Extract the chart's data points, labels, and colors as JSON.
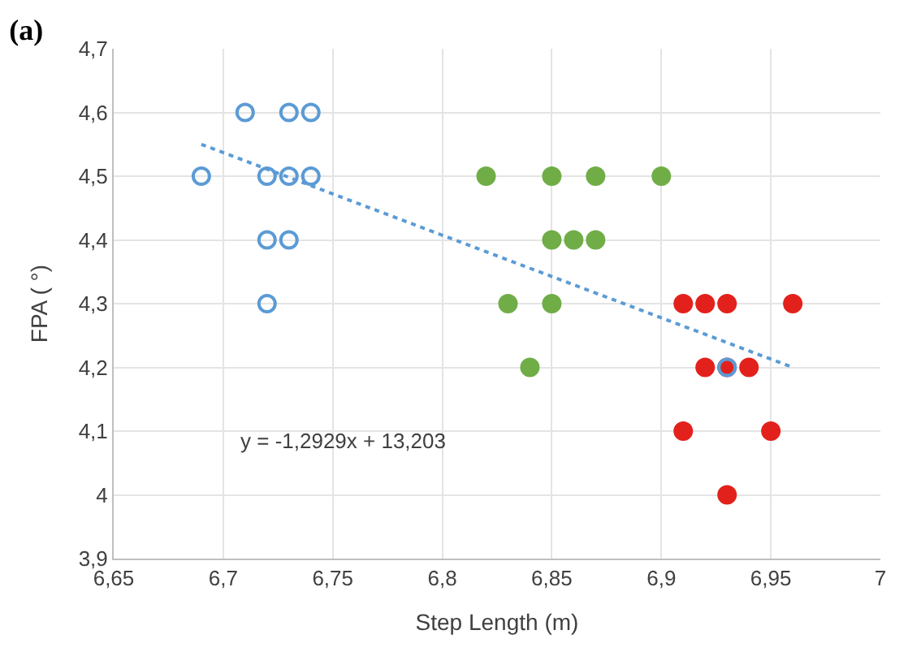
{
  "chart_data": {
    "type": "scatter",
    "title": "(a)",
    "xlabel": "Step Length (m)",
    "ylabel": "FPA ( °)",
    "annotations": [
      "y = -1,2929x + 13,203"
    ],
    "xlim": [
      6.65,
      7
    ],
    "ylim": [
      3.9,
      4.7
    ],
    "xticks": [
      {
        "value": 6.65,
        "label": "6,65"
      },
      {
        "value": 6.7,
        "label": "6,7"
      },
      {
        "value": 6.75,
        "label": "6,75"
      },
      {
        "value": 6.8,
        "label": "6,8"
      },
      {
        "value": 6.85,
        "label": "6,85"
      },
      {
        "value": 6.9,
        "label": "6,9"
      },
      {
        "value": 6.95,
        "label": "6,95"
      },
      7
    ],
    "yticks": [
      {
        "value": 3.9,
        "label": "3,9"
      },
      4,
      {
        "value": 4.1,
        "label": "4,1"
      },
      {
        "value": 4.2,
        "label": "4,2"
      },
      {
        "value": 4.3,
        "label": "4,3"
      },
      {
        "value": 4.4,
        "label": "4,4"
      },
      {
        "value": 4.5,
        "label": "4,5"
      },
      {
        "value": 4.6,
        "label": "4,6"
      },
      {
        "value": 4.7,
        "label": "4,7"
      }
    ],
    "grid": true,
    "legend": false,
    "series": [
      {
        "color": "#70ad47",
        "x": [
          6.82,
          6.85,
          6.87,
          6.9,
          6.85,
          6.86,
          6.87,
          6.83,
          6.85,
          6.84
        ],
        "values": [
          4.5,
          4.5,
          4.5,
          4.5,
          4.4,
          4.4,
          4.4,
          4.3,
          4.3,
          4.2
        ]
      },
      {
        "color": "#e3211c",
        "x": [
          6.91,
          6.92,
          6.93,
          6.96,
          6.92,
          6.93,
          6.94,
          6.91,
          6.95,
          6.93
        ],
        "values": [
          4.3,
          4.3,
          4.3,
          4.3,
          4.2,
          4.2,
          4.2,
          4.1,
          4.1,
          4.0
        ]
      },
      {
        "color": "#5b9bd5",
        "marker": "circle-open",
        "x": [
          6.71,
          6.73,
          6.74,
          6.69,
          6.72,
          6.73,
          6.74,
          6.72,
          6.73,
          6.72,
          6.93
        ],
        "values": [
          4.6,
          4.6,
          4.6,
          4.5,
          4.5,
          4.5,
          4.5,
          4.4,
          4.4,
          4.3,
          4.2
        ]
      },
      {
        "type": "line",
        "color": "#5b9bd5",
        "line_style": "dotted",
        "marker": "none",
        "x": [
          6.69,
          6.96
        ],
        "values": [
          4.55,
          4.2
        ]
      }
    ]
  }
}
